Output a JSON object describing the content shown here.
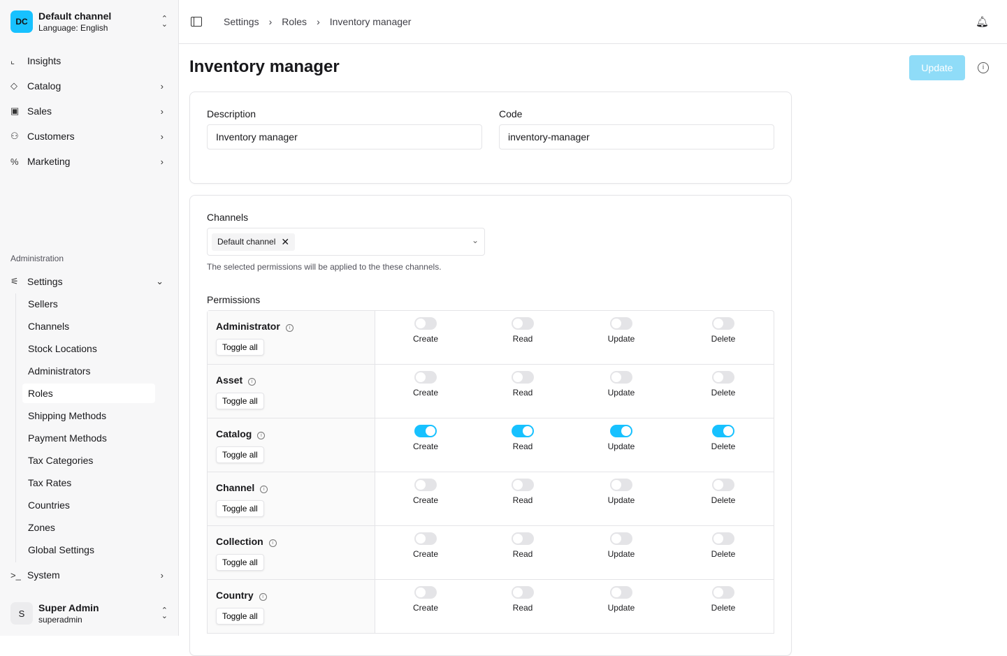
{
  "channel": {
    "initials": "DC",
    "name": "Default channel",
    "language": "Language: English"
  },
  "nav": [
    {
      "label": "Insights",
      "icon": "chart-line-icon",
      "ic": "⌞"
    },
    {
      "label": "Catalog",
      "icon": "tag-icon",
      "ic": "◇",
      "chevron": true
    },
    {
      "label": "Sales",
      "icon": "shopping-bag-icon",
      "ic": "▣",
      "chevron": true
    },
    {
      "label": "Customers",
      "icon": "users-icon",
      "ic": "⚇",
      "chevron": true
    },
    {
      "label": "Marketing",
      "icon": "percent-icon",
      "ic": "%",
      "chevron": true
    }
  ],
  "admin_section": "Administration",
  "settings": {
    "label": "Settings",
    "items": [
      "Sellers",
      "Channels",
      "Stock Locations",
      "Administrators",
      "Roles",
      "Shipping Methods",
      "Payment Methods",
      "Tax Categories",
      "Tax Rates",
      "Countries",
      "Zones",
      "Global Settings"
    ],
    "active": "Roles"
  },
  "system": {
    "label": "System"
  },
  "user": {
    "initial": "S",
    "name": "Super Admin",
    "username": "superadmin"
  },
  "breadcrumb": [
    "Settings",
    "Roles",
    "Inventory manager"
  ],
  "page_title": "Inventory manager",
  "update_label": "Update",
  "form": {
    "description_label": "Description",
    "description_value": "Inventory manager",
    "code_label": "Code",
    "code_value": "inventory-manager"
  },
  "channels": {
    "label": "Channels",
    "selected": "Default channel",
    "hint": "The selected permissions will be applied to the these channels."
  },
  "permissions": {
    "label": "Permissions",
    "toggle_all": "Toggle all",
    "actions": [
      "Create",
      "Read",
      "Update",
      "Delete"
    ],
    "rows": [
      {
        "name": "Administrator",
        "values": [
          false,
          false,
          false,
          false
        ]
      },
      {
        "name": "Asset",
        "values": [
          false,
          false,
          false,
          false
        ]
      },
      {
        "name": "Catalog",
        "values": [
          true,
          true,
          true,
          true
        ]
      },
      {
        "name": "Channel",
        "values": [
          false,
          false,
          false,
          false
        ]
      },
      {
        "name": "Collection",
        "values": [
          false,
          false,
          false,
          false
        ]
      },
      {
        "name": "Country",
        "values": [
          false,
          false,
          false,
          false
        ]
      }
    ]
  },
  "colors": {
    "accent": "#17c1ff",
    "update_disabled": "#8fdcf8"
  }
}
